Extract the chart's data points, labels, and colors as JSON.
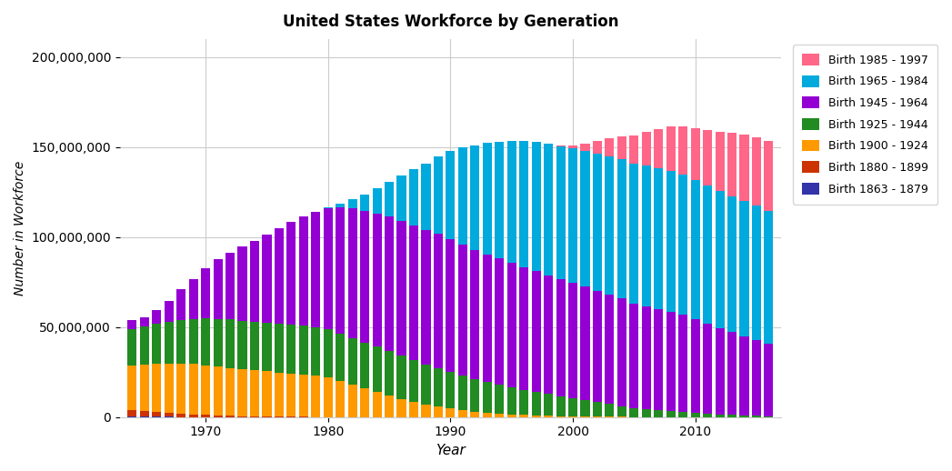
{
  "title": "United States Workforce by Generation",
  "xlabel": "Year",
  "ylabel": "Number in Workforce",
  "years": [
    1964,
    1965,
    1966,
    1967,
    1968,
    1969,
    1970,
    1971,
    1972,
    1973,
    1974,
    1975,
    1976,
    1977,
    1978,
    1979,
    1980,
    1981,
    1982,
    1983,
    1984,
    1985,
    1986,
    1987,
    1988,
    1989,
    1990,
    1991,
    1992,
    1993,
    1994,
    1995,
    1996,
    1997,
    1998,
    1999,
    2000,
    2001,
    2002,
    2003,
    2004,
    2005,
    2006,
    2007,
    2008,
    2009,
    2010,
    2011,
    2012,
    2013,
    2014,
    2015,
    2016
  ],
  "gen_1863_1879": [
    300000,
    250000,
    200000,
    150000,
    100000,
    80000,
    50000,
    30000,
    20000,
    10000,
    5000,
    0,
    0,
    0,
    0,
    0,
    0,
    0,
    0,
    0,
    0,
    0,
    0,
    0,
    0,
    0,
    0,
    0,
    0,
    0,
    0,
    0,
    0,
    0,
    0,
    0,
    0,
    0,
    0,
    0,
    0,
    0,
    0,
    0,
    0,
    0,
    0,
    0,
    0,
    0,
    0,
    0,
    0
  ],
  "gen_1880_1899": [
    3500000,
    3000000,
    2500000,
    2000000,
    1800000,
    1500000,
    1200000,
    1000000,
    800000,
    600000,
    500000,
    400000,
    300000,
    200000,
    150000,
    100000,
    80000,
    60000,
    40000,
    20000,
    10000,
    5000,
    0,
    0,
    0,
    0,
    0,
    0,
    0,
    0,
    0,
    0,
    0,
    0,
    0,
    0,
    0,
    0,
    0,
    0,
    0,
    0,
    0,
    0,
    0,
    0,
    0,
    0,
    0,
    0,
    0,
    0,
    0
  ],
  "gen_1900_1924": [
    25000000,
    26000000,
    27000000,
    27500000,
    28000000,
    28000000,
    27500000,
    27000000,
    26500000,
    26000000,
    25500000,
    25000000,
    24500000,
    24000000,
    23500000,
    23000000,
    22000000,
    20000000,
    18000000,
    16000000,
    14000000,
    12000000,
    10000000,
    8500000,
    7000000,
    6000000,
    5000000,
    4000000,
    3000000,
    2500000,
    2000000,
    1500000,
    1200000,
    1000000,
    800000,
    600000,
    500000,
    400000,
    300000,
    200000,
    150000,
    100000,
    80000,
    50000,
    30000,
    20000,
    10000,
    5000,
    0,
    0,
    0,
    0,
    0
  ],
  "gen_1925_1944": [
    20000000,
    21000000,
    22000000,
    23000000,
    24000000,
    25000000,
    26000000,
    26500000,
    27000000,
    27000000,
    27000000,
    27000000,
    27000000,
    27000000,
    27000000,
    27000000,
    27000000,
    26500000,
    26000000,
    25500000,
    25000000,
    24500000,
    24000000,
    23000000,
    22000000,
    21000000,
    20000000,
    19000000,
    18000000,
    17000000,
    16000000,
    15000000,
    14000000,
    13000000,
    12000000,
    11000000,
    10000000,
    9000000,
    8000000,
    7000000,
    6000000,
    5000000,
    4500000,
    4000000,
    3500000,
    3000000,
    2500000,
    2000000,
    1500000,
    1200000,
    1000000,
    800000,
    600000
  ],
  "gen_1945_1964": [
    5000000,
    5000000,
    8000000,
    12000000,
    17000000,
    22000000,
    28000000,
    33000000,
    37000000,
    41000000,
    45000000,
    49000000,
    53000000,
    57000000,
    61000000,
    64000000,
    67000000,
    70000000,
    72000000,
    73000000,
    74000000,
    75000000,
    75000000,
    75000000,
    75000000,
    75000000,
    74000000,
    73000000,
    72000000,
    71000000,
    70000000,
    69000000,
    68000000,
    67000000,
    66000000,
    65000000,
    64000000,
    63000000,
    62000000,
    61000000,
    60000000,
    58000000,
    57000000,
    56000000,
    55000000,
    54000000,
    52000000,
    50000000,
    48000000,
    46000000,
    44000000,
    42000000,
    40000000
  ],
  "gen_1965_1984": [
    0,
    0,
    0,
    0,
    0,
    0,
    0,
    0,
    0,
    0,
    0,
    0,
    0,
    0,
    0,
    0,
    500000,
    2000000,
    5000000,
    9000000,
    14000000,
    19000000,
    25000000,
    31000000,
    37000000,
    43000000,
    49000000,
    54000000,
    58000000,
    62000000,
    65000000,
    68000000,
    70000000,
    72000000,
    73000000,
    74000000,
    75000000,
    75500000,
    76000000,
    76500000,
    77000000,
    77500000,
    78000000,
    78000000,
    78000000,
    77500000,
    77000000,
    76500000,
    76000000,
    75500000,
    75000000,
    74500000,
    74000000
  ],
  "gen_1985_1997": [
    0,
    0,
    0,
    0,
    0,
    0,
    0,
    0,
    0,
    0,
    0,
    0,
    0,
    0,
    0,
    0,
    0,
    0,
    0,
    0,
    0,
    0,
    0,
    0,
    0,
    0,
    0,
    0,
    0,
    0,
    0,
    0,
    0,
    0,
    0,
    500000,
    1500000,
    4000000,
    7000000,
    10000000,
    13000000,
    16000000,
    19000000,
    22000000,
    25000000,
    27000000,
    29000000,
    31000000,
    33000000,
    35000000,
    37000000,
    38000000,
    39000000
  ],
  "colors": {
    "gen_1863_1879": "#3333aa",
    "gen_1880_1899": "#cc3300",
    "gen_1900_1924": "#ff9900",
    "gen_1925_1944": "#228B22",
    "gen_1945_1964": "#9400D3",
    "gen_1965_1984": "#00aadd",
    "gen_1985_1997": "#ff6688"
  },
  "legend_labels": {
    "gen_1985_1997": "Birth 1985 - 1997",
    "gen_1965_1984": "Birth 1965 - 1984",
    "gen_1945_1964": "Birth 1945 - 1964",
    "gen_1925_1944": "Birth 1925 - 1944",
    "gen_1900_1924": "Birth 1900 - 1924",
    "gen_1880_1899": "Birth 1880 - 1899",
    "gen_1863_1879": "Birth 1863 - 1879"
  },
  "ylim": [
    0,
    210000000
  ],
  "yticks": [
    0,
    50000000,
    100000000,
    150000000,
    200000000
  ],
  "xticks": [
    1970,
    1980,
    1990,
    2000,
    2010
  ],
  "background_color": "#ffffff",
  "bar_width": 0.75
}
